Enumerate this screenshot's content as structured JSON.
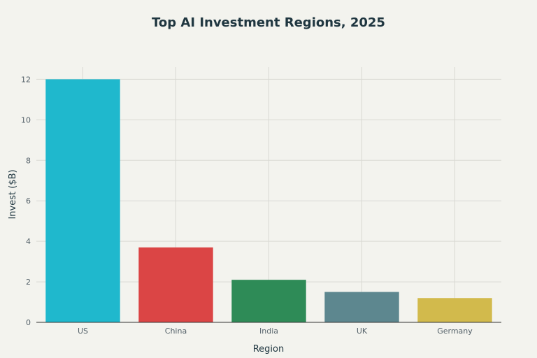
{
  "chart_data": {
    "type": "bar",
    "title": "Top AI Investment Regions, 2025",
    "xlabel": "Region",
    "ylabel": "Invest ($B)",
    "categories": [
      "US",
      "China",
      "India",
      "UK",
      "Germany"
    ],
    "values": [
      12.0,
      3.7,
      2.1,
      1.5,
      1.2
    ],
    "colors": [
      "#1fb8cd",
      "#db4545",
      "#2e8b57",
      "#5d878f",
      "#d2ba4c"
    ],
    "ylim": [
      0,
      12.6
    ],
    "yticks": [
      0,
      2,
      4,
      6,
      8,
      10,
      12
    ],
    "grid": true,
    "legend": "none"
  }
}
